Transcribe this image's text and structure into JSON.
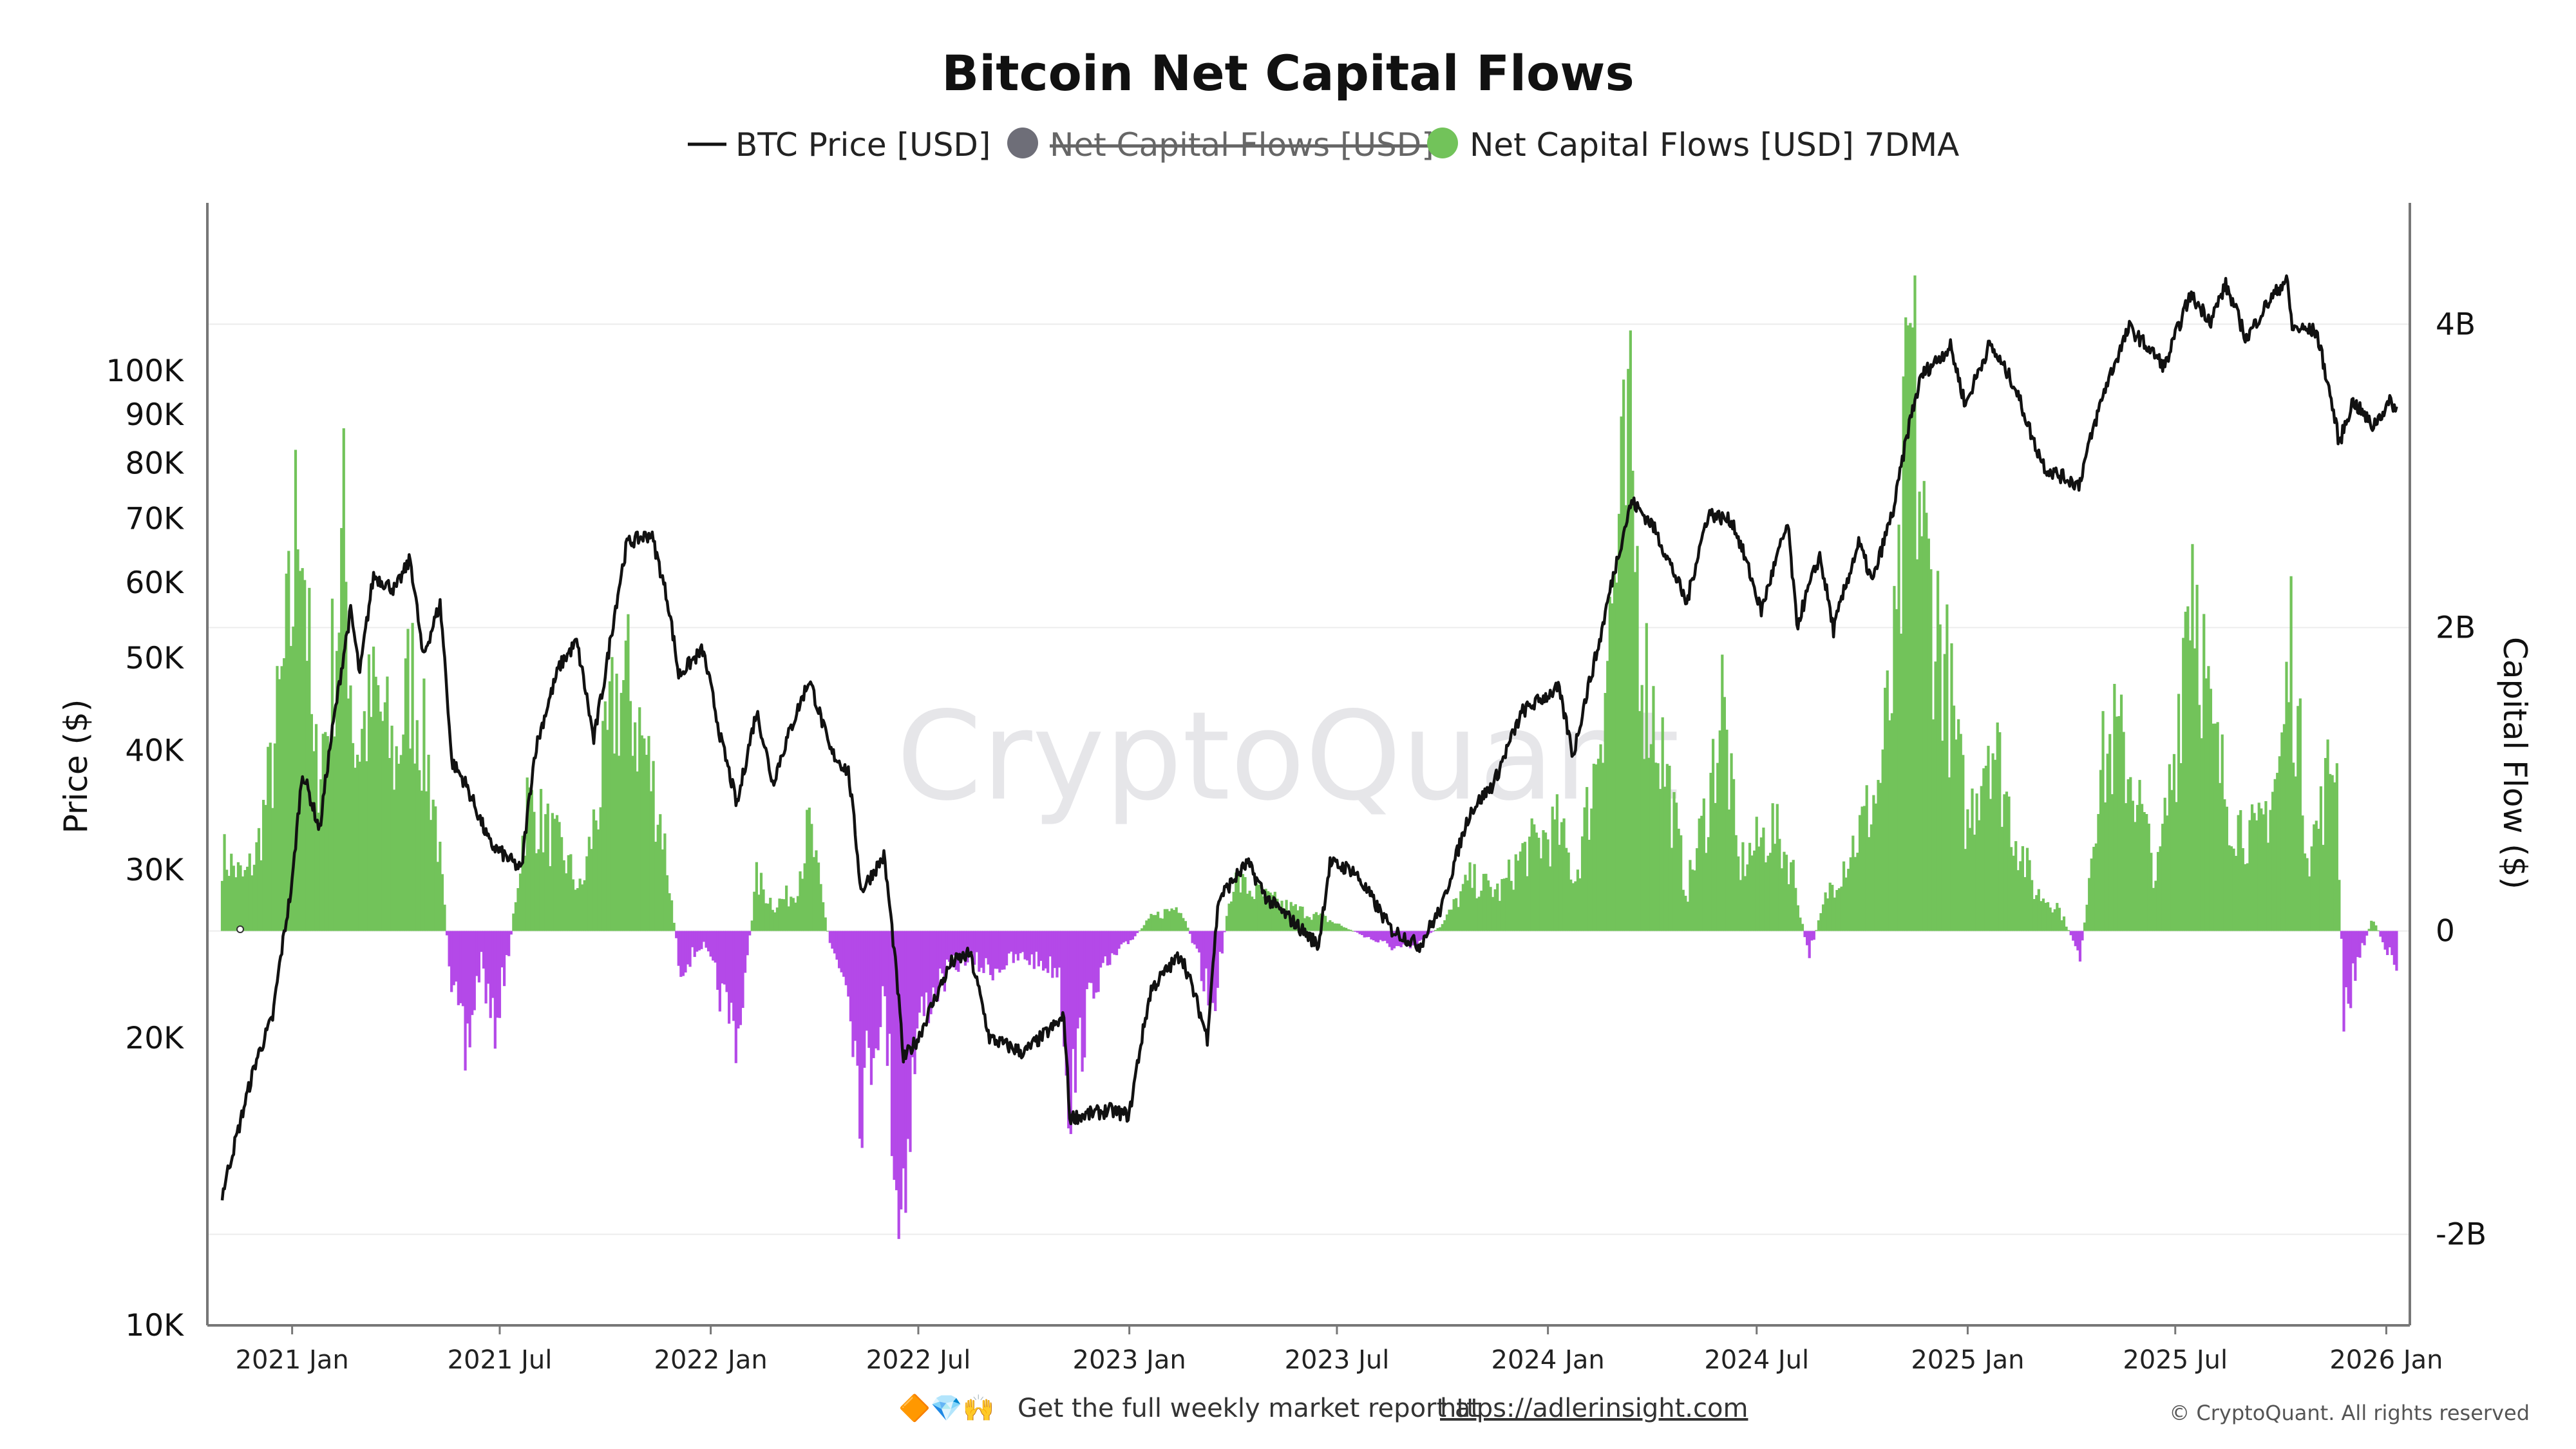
{
  "chart_data": {
    "type": "bar+line",
    "title": "Bitcoin Net Capital Flows",
    "legend": [
      {
        "name": "BTC Price [USD]",
        "marker": "line",
        "color": "#111111",
        "hidden": false
      },
      {
        "name": "Net Capital Flows [USD]",
        "marker": "circle",
        "color": "#6e6e78",
        "hidden": true
      },
      {
        "name": "Net Capital Flows [USD] 7DMA",
        "marker": "circle",
        "color": "#72c35a",
        "hidden": false
      }
    ],
    "legend_position": "top-center",
    "x_range": [
      "2020-11-01",
      "2026-01-12"
    ],
    "x_ticks": [
      "2021 Jan",
      "2021 Jul",
      "2022 Jan",
      "2022 Jul",
      "2023 Jan",
      "2023 Jul",
      "2024 Jan",
      "2024 Jul",
      "2025 Jan",
      "2025 Jul",
      "2026 Jan"
    ],
    "y_left": {
      "label": "Price ($)",
      "scale": "log",
      "range": [
        10000,
        150000
      ],
      "ticks": [
        "10K",
        "20K",
        "30K",
        "40K",
        "50K",
        "60K",
        "70K",
        "80K",
        "90K",
        "100K"
      ]
    },
    "y_right": {
      "label": "Capital Flow ($)",
      "range": [
        -2600000000,
        4800000000
      ],
      "ticks": [
        "-2B",
        "0",
        "2B",
        "4B"
      ]
    },
    "positive_color": "#72c35a",
    "negative_color": "#b449e8",
    "price_series": {
      "name": "BTC Price [USD]",
      "points": [
        [
          "2020-11-01",
          13700
        ],
        [
          "2020-11-15",
          16000
        ],
        [
          "2020-12-01",
          19000
        ],
        [
          "2020-12-15",
          21000
        ],
        [
          "2021-01-01",
          29000
        ],
        [
          "2021-01-10",
          38000
        ],
        [
          "2021-01-25",
          33000
        ],
        [
          "2021-02-10",
          46000
        ],
        [
          "2021-02-21",
          56000
        ],
        [
          "2021-03-01",
          48000
        ],
        [
          "2021-03-13",
          61000
        ],
        [
          "2021-04-01",
          59000
        ],
        [
          "2021-04-14",
          63500
        ],
        [
          "2021-04-25",
          50000
        ],
        [
          "2021-05-10",
          57000
        ],
        [
          "2021-05-20",
          39000
        ],
        [
          "2021-06-01",
          37000
        ],
        [
          "2021-06-22",
          32000
        ],
        [
          "2021-07-20",
          30000
        ],
        [
          "2021-08-01",
          40000
        ],
        [
          "2021-08-22",
          49000
        ],
        [
          "2021-09-06",
          52000
        ],
        [
          "2021-09-21",
          41000
        ],
        [
          "2021-10-01",
          48000
        ],
        [
          "2021-10-20",
          66000
        ],
        [
          "2021-11-10",
          67500
        ],
        [
          "2021-11-25",
          57000
        ],
        [
          "2021-12-04",
          48000
        ],
        [
          "2021-12-25",
          51000
        ],
        [
          "2022-01-10",
          41000
        ],
        [
          "2022-01-24",
          35000
        ],
        [
          "2022-02-10",
          44000
        ],
        [
          "2022-02-24",
          37000
        ],
        [
          "2022-03-28",
          47500
        ],
        [
          "2022-04-15",
          40000
        ],
        [
          "2022-05-01",
          38000
        ],
        [
          "2022-05-12",
          28500
        ],
        [
          "2022-06-01",
          31000
        ],
        [
          "2022-06-18",
          19000
        ],
        [
          "2022-07-01",
          20000
        ],
        [
          "2022-07-30",
          24000
        ],
        [
          "2022-08-15",
          24500
        ],
        [
          "2022-09-01",
          20000
        ],
        [
          "2022-10-01",
          19300
        ],
        [
          "2022-11-05",
          21000
        ],
        [
          "2022-11-10",
          16500
        ],
        [
          "2022-12-15",
          16800
        ],
        [
          "2023-01-01",
          16600
        ],
        [
          "2023-01-20",
          22500
        ],
        [
          "2023-02-15",
          24500
        ],
        [
          "2023-03-10",
          20000
        ],
        [
          "2023-03-20",
          28000
        ],
        [
          "2023-04-14",
          30500
        ],
        [
          "2023-05-01",
          28000
        ],
        [
          "2023-06-15",
          25000
        ],
        [
          "2023-06-25",
          30500
        ],
        [
          "2023-07-15",
          30000
        ],
        [
          "2023-08-17",
          26000
        ],
        [
          "2023-09-11",
          25000
        ],
        [
          "2023-10-01",
          27500
        ],
        [
          "2023-10-25",
          34500
        ],
        [
          "2023-11-15",
          37000
        ],
        [
          "2023-12-10",
          44000
        ],
        [
          "2024-01-10",
          46500
        ],
        [
          "2024-01-23",
          39500
        ],
        [
          "2024-02-15",
          52000
        ],
        [
          "2024-03-14",
          73000
        ],
        [
          "2024-04-01",
          69000
        ],
        [
          "2024-05-01",
          57000
        ],
        [
          "2024-05-20",
          71000
        ],
        [
          "2024-06-10",
          69500
        ],
        [
          "2024-07-05",
          56000
        ],
        [
          "2024-07-28",
          69000
        ],
        [
          "2024-08-05",
          54000
        ],
        [
          "2024-08-25",
          64000
        ],
        [
          "2024-09-06",
          53500
        ],
        [
          "2024-09-28",
          66000
        ],
        [
          "2024-10-10",
          60000
        ],
        [
          "2024-10-29",
          72000
        ],
        [
          "2024-11-12",
          89000
        ],
        [
          "2024-11-22",
          99000
        ],
        [
          "2024-12-17",
          106000
        ],
        [
          "2024-12-30",
          92000
        ],
        [
          "2025-01-20",
          106500
        ],
        [
          "2025-02-10",
          97000
        ],
        [
          "2025-02-28",
          84000
        ],
        [
          "2025-03-10",
          79000
        ],
        [
          "2025-04-08",
          76000
        ],
        [
          "2025-05-01",
          96000
        ],
        [
          "2025-05-22",
          111000
        ],
        [
          "2025-06-22",
          101000
        ],
        [
          "2025-07-14",
          120000
        ],
        [
          "2025-08-01",
          113000
        ],
        [
          "2025-08-14",
          123000
        ],
        [
          "2025-09-01",
          108000
        ],
        [
          "2025-09-18",
          117000
        ],
        [
          "2025-10-06",
          125000
        ],
        [
          "2025-10-11",
          111000
        ],
        [
          "2025-11-01",
          110000
        ],
        [
          "2025-11-21",
          84000
        ],
        [
          "2025-12-03",
          93000
        ],
        [
          "2025-12-20",
          87500
        ],
        [
          "2026-01-05",
          93000
        ],
        [
          "2026-01-10",
          91000
        ]
      ]
    },
    "flow_series": {
      "name": "Net Capital Flows [USD] 7DMA",
      "points": [
        [
          "2020-11-01",
          600000000
        ],
        [
          "2020-11-20",
          400000000
        ],
        [
          "2020-12-01",
          600000000
        ],
        [
          "2020-12-15",
          1300000000
        ],
        [
          "2021-01-01",
          2500000000
        ],
        [
          "2021-01-08",
          3700000000
        ],
        [
          "2021-01-20",
          1200000000
        ],
        [
          "2021-02-01",
          1600000000
        ],
        [
          "2021-02-15",
          3000000000
        ],
        [
          "2021-02-25",
          1400000000
        ],
        [
          "2021-03-15",
          1800000000
        ],
        [
          "2021-04-01",
          1300000000
        ],
        [
          "2021-04-15",
          2000000000
        ],
        [
          "2021-05-05",
          1000000000
        ],
        [
          "2021-05-20",
          -400000000
        ],
        [
          "2021-06-01",
          -1000000000
        ],
        [
          "2021-06-15",
          -200000000
        ],
        [
          "2021-06-25",
          -800000000
        ],
        [
          "2021-07-10",
          -100000000
        ],
        [
          "2021-07-25",
          1000000000
        ],
        [
          "2021-08-10",
          800000000
        ],
        [
          "2021-08-25",
          600000000
        ],
        [
          "2021-09-10",
          300000000
        ],
        [
          "2021-09-25",
          1000000000
        ],
        [
          "2021-10-10",
          1800000000
        ],
        [
          "2021-10-20",
          1900000000
        ],
        [
          "2021-11-05",
          1400000000
        ],
        [
          "2021-11-20",
          800000000
        ],
        [
          "2021-12-05",
          -300000000
        ],
        [
          "2021-12-25",
          -100000000
        ],
        [
          "2022-01-10",
          -500000000
        ],
        [
          "2022-01-25",
          -800000000
        ],
        [
          "2022-02-10",
          400000000
        ],
        [
          "2022-02-25",
          200000000
        ],
        [
          "2022-03-15",
          300000000
        ],
        [
          "2022-03-28",
          800000000
        ],
        [
          "2022-04-15",
          -100000000
        ],
        [
          "2022-05-01",
          -400000000
        ],
        [
          "2022-05-12",
          -1300000000
        ],
        [
          "2022-06-01",
          -500000000
        ],
        [
          "2022-06-15",
          -2200000000
        ],
        [
          "2022-07-01",
          -700000000
        ],
        [
          "2022-07-20",
          -400000000
        ],
        [
          "2022-08-10",
          -200000000
        ],
        [
          "2022-09-01",
          -300000000
        ],
        [
          "2022-10-01",
          -200000000
        ],
        [
          "2022-11-01",
          -300000000
        ],
        [
          "2022-11-10",
          -1300000000
        ],
        [
          "2022-12-01",
          -400000000
        ],
        [
          "2022-12-20",
          -200000000
        ],
        [
          "2023-01-20",
          100000000
        ],
        [
          "2023-02-15",
          200000000
        ],
        [
          "2023-03-01",
          -200000000
        ],
        [
          "2023-03-15",
          -600000000
        ],
        [
          "2023-04-01",
          400000000
        ],
        [
          "2023-04-20",
          300000000
        ],
        [
          "2023-05-15",
          200000000
        ],
        [
          "2023-06-20",
          100000000
        ],
        [
          "2023-07-15",
          0
        ],
        [
          "2023-08-10",
          -100000000
        ],
        [
          "2023-09-01",
          -150000000
        ],
        [
          "2023-10-01",
          50000000
        ],
        [
          "2023-10-25",
          400000000
        ],
        [
          "2023-11-20",
          300000000
        ],
        [
          "2023-12-10",
          600000000
        ],
        [
          "2024-01-10",
          800000000
        ],
        [
          "2024-01-25",
          400000000
        ],
        [
          "2024-02-10",
          1200000000
        ],
        [
          "2024-02-28",
          2700000000
        ],
        [
          "2024-03-12",
          3600000000
        ],
        [
          "2024-03-25",
          2000000000
        ],
        [
          "2024-04-10",
          1400000000
        ],
        [
          "2024-05-01",
          300000000
        ],
        [
          "2024-05-20",
          1000000000
        ],
        [
          "2024-06-01",
          1800000000
        ],
        [
          "2024-06-15",
          500000000
        ],
        [
          "2024-07-15",
          800000000
        ],
        [
          "2024-08-01",
          500000000
        ],
        [
          "2024-08-15",
          -200000000
        ],
        [
          "2024-09-01",
          300000000
        ],
        [
          "2024-09-25",
          700000000
        ],
        [
          "2024-10-15",
          1100000000
        ],
        [
          "2024-11-01",
          2200000000
        ],
        [
          "2024-11-12",
          4500000000
        ],
        [
          "2024-11-25",
          2800000000
        ],
        [
          "2024-12-10",
          2200000000
        ],
        [
          "2025-01-01",
          800000000
        ],
        [
          "2025-01-20",
          1600000000
        ],
        [
          "2025-02-10",
          800000000
        ],
        [
          "2025-03-01",
          300000000
        ],
        [
          "2025-03-20",
          200000000
        ],
        [
          "2025-04-10",
          -200000000
        ],
        [
          "2025-04-25",
          1200000000
        ],
        [
          "2025-05-10",
          1500000000
        ],
        [
          "2025-05-25",
          1200000000
        ],
        [
          "2025-06-15",
          400000000
        ],
        [
          "2025-07-01",
          1400000000
        ],
        [
          "2025-07-15",
          3100000000
        ],
        [
          "2025-08-01",
          1500000000
        ],
        [
          "2025-08-20",
          900000000
        ],
        [
          "2025-09-10",
          700000000
        ],
        [
          "2025-10-01",
          1300000000
        ],
        [
          "2025-10-10",
          2200000000
        ],
        [
          "2025-10-25",
          600000000
        ],
        [
          "2025-11-05",
          900000000
        ],
        [
          "2025-11-18",
          1500000000
        ],
        [
          "2025-11-25",
          -700000000
        ],
        [
          "2025-12-05",
          -300000000
        ],
        [
          "2025-12-20",
          100000000
        ],
        [
          "2026-01-10",
          -300000000
        ]
      ]
    }
  },
  "watermark": "CryptoQuant",
  "footer": {
    "emoji": "🔶💎🙌",
    "text": "Get the full weekly market report at",
    "link": "https://adlerinsight.com"
  },
  "copyright": "© CryptoQuant. All rights reserved"
}
